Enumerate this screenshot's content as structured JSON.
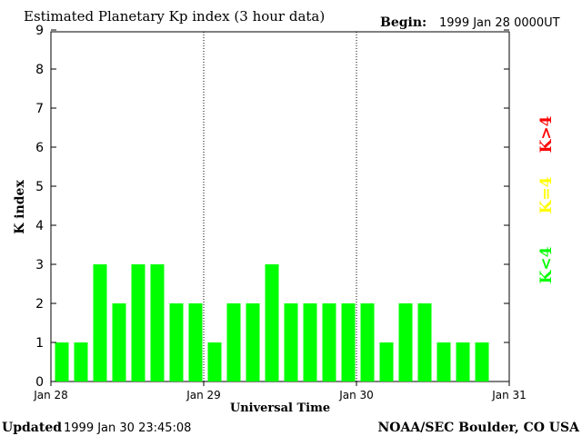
{
  "chart_data": {
    "type": "bar",
    "title": "Estimated Planetary Kp index (3 hour data)",
    "begin_label": "Begin:",
    "begin_value": "1999 Jan 28 0000UT",
    "xlabel": "Universal Time",
    "ylabel": "K index",
    "ylim": [
      0,
      9
    ],
    "yticks": [
      "0",
      "1",
      "2",
      "3",
      "4",
      "5",
      "6",
      "7",
      "8",
      "9"
    ],
    "xticks": [
      "Jan 28",
      "Jan 29",
      "Jan 30",
      "Jan 31"
    ],
    "values": [
      1,
      1,
      3,
      2,
      3,
      3,
      2,
      2,
      1,
      2,
      2,
      3,
      2,
      2,
      2,
      2,
      2,
      1,
      2,
      2,
      1,
      1,
      1
    ],
    "bar_color": "#00ff00",
    "legend": [
      {
        "label": "K<4",
        "color": "#00ff00"
      },
      {
        "label": "K=4",
        "color": "#ffff00"
      },
      {
        "label": "K>4",
        "color": "#ff0000"
      }
    ],
    "grid": false
  },
  "footer": {
    "updated_label": "Updated",
    "updated_value": "1999 Jan 30 23:45:08",
    "source": "NOAA/SEC Boulder, CO USA"
  }
}
